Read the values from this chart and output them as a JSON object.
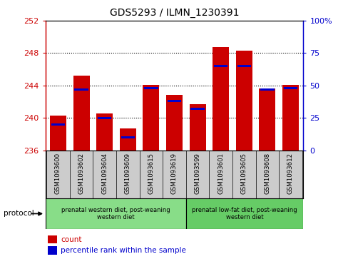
{
  "title": "GDS5293 / ILMN_1230391",
  "samples": [
    "GSM1093600",
    "GSM1093602",
    "GSM1093604",
    "GSM1093609",
    "GSM1093615",
    "GSM1093619",
    "GSM1093599",
    "GSM1093601",
    "GSM1093605",
    "GSM1093608",
    "GSM1093612"
  ],
  "counts": [
    240.3,
    245.2,
    240.5,
    238.7,
    244.1,
    242.8,
    241.7,
    248.7,
    248.3,
    243.6,
    244.1
  ],
  "percentiles": [
    20,
    47,
    25,
    10,
    48,
    38,
    32,
    65,
    65,
    47,
    48
  ],
  "ymin": 236,
  "ymax": 252,
  "yticks": [
    236,
    240,
    244,
    248,
    252
  ],
  "yright_ticks": [
    0,
    25,
    50,
    75,
    100
  ],
  "bar_color": "#cc0000",
  "blue_color": "#0000cc",
  "group1_label": "prenatal western diet, post-weaning\nwestern diet",
  "group2_label": "prenatal low-fat diet, post-weaning\nwestern diet",
  "group1_count": 6,
  "group2_count": 5,
  "group1_color": "#88dd88",
  "group2_color": "#66cc66",
  "protocol_label": "protocol",
  "legend_count": "count",
  "legend_pct": "percentile rank within the sample",
  "sample_bg_color": "#cccccc",
  "plot_bg": "#ffffff"
}
